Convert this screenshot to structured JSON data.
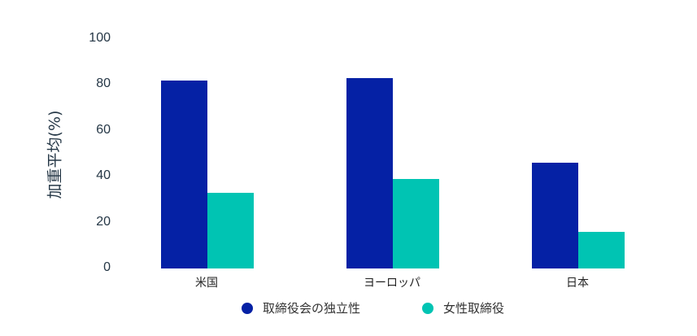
{
  "chart_data": {
    "type": "bar",
    "title": "",
    "xlabel": "",
    "ylabel": "加重平均(%)",
    "ylim": [
      0,
      100
    ],
    "yticks": [
      0,
      20,
      40,
      60,
      80,
      100
    ],
    "grid": false,
    "legend_position": "bottom",
    "categories": [
      "米国",
      "ヨーロッパ",
      "日本"
    ],
    "series": [
      {
        "name": "取締役会の独立性",
        "color": "#0521a5",
        "values": [
          82,
          83,
          46
        ]
      },
      {
        "name": "女性取締役",
        "color": "#00c4b3",
        "values": [
          33,
          39,
          16
        ]
      }
    ]
  },
  "axis": {
    "ylabel": "加重平均(%)",
    "ticks": [
      "0",
      "20",
      "40",
      "60",
      "80",
      "100"
    ]
  },
  "legend": [
    {
      "label": "取締役会の独立性",
      "color": "#0521a5"
    },
    {
      "label": "女性取締役",
      "color": "#00c4b3"
    }
  ]
}
